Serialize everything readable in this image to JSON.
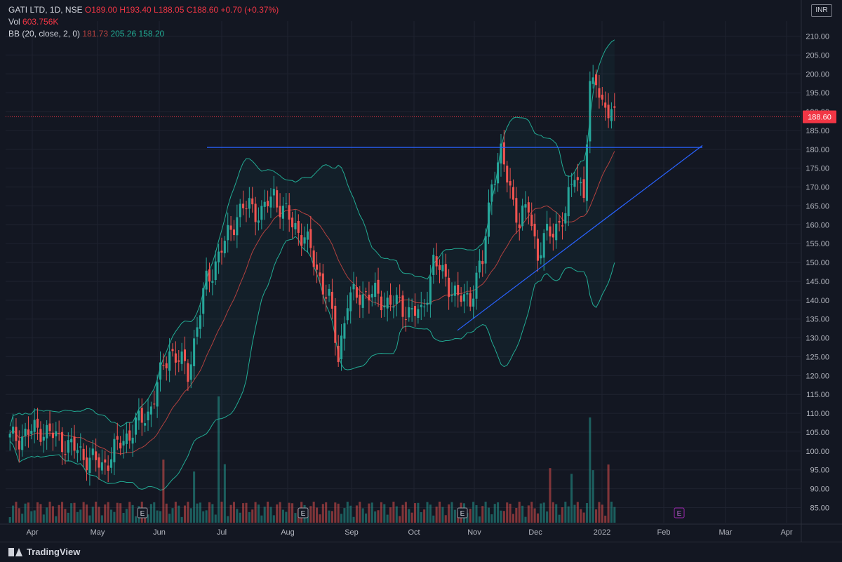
{
  "header": {
    "symbol_line": "GATI LTD, 1D, NSE",
    "open": "O189.00",
    "high": "H193.40",
    "low": "L188.05",
    "close": "C188.60",
    "change": "+0.70 (+0.37%)",
    "volume_label": "Vol",
    "volume_value": "603.756K",
    "bb_label": "BB (20, close, 2, 0)",
    "bb_basis": "181.73",
    "bb_upper": "205.26",
    "bb_lower": "158.20",
    "currency": "INR"
  },
  "footer": {
    "brand": "TradingView"
  },
  "colors": {
    "background": "#131722",
    "up": "#26a69a",
    "down": "#ef5350",
    "basis": "#b2413f",
    "bands": "#22ab94",
    "trendline": "#2962ff",
    "price_label": "#f23645",
    "earnings_past": "#9598a1",
    "earnings_future": "#9c27b0"
  },
  "chart_data": {
    "type": "candlestick",
    "y_ticks": [
      "210.00",
      "205.00",
      "200.00",
      "195.00",
      "190.00",
      "185.00",
      "180.00",
      "175.00",
      "170.00",
      "165.00",
      "160.00",
      "155.00",
      "150.00",
      "145.00",
      "140.00",
      "135.00",
      "130.00",
      "125.00",
      "120.00",
      "115.00",
      "110.00",
      "105.00",
      "100.00",
      "95.00",
      "90.00",
      "85.00"
    ],
    "ylim": [
      81,
      214
    ],
    "x_ticks": [
      "Apr",
      "May",
      "Jun",
      "Jul",
      "Aug",
      "Sep",
      "Oct",
      "Nov",
      "Dec",
      "2022",
      "Feb",
      "Mar",
      "Apr"
    ],
    "last_price": "188.60",
    "earnings_marker": "E",
    "earnings_count_past": 3,
    "earnings_count_future": 1,
    "key_points": {
      "start_close": 103,
      "may_low": 95,
      "june_high": 175,
      "july_high": 176,
      "aug_low": 120,
      "oct_low": 133,
      "nov_high": 181,
      "dec_low": 145,
      "jan_high": 206,
      "last_close": 188.6
    },
    "resistance_level": 180.5,
    "support_trend": {
      "from": 132,
      "to": 181
    }
  }
}
